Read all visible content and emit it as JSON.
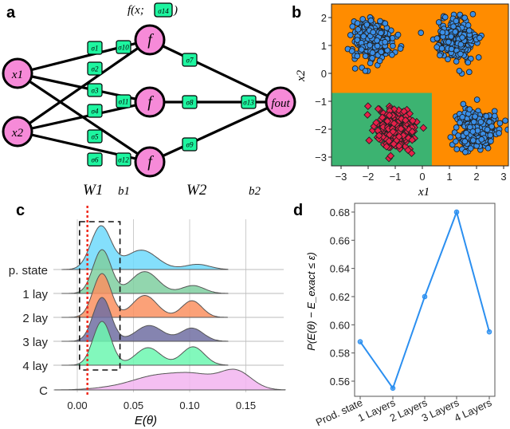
{
  "panel_labels": {
    "a": "a",
    "b": "b",
    "c": "c",
    "d": "d"
  },
  "network": {
    "title_prefix": "f(x;",
    "title_sigma": "σ14",
    "title_suffix": ")",
    "inputs": [
      "x1",
      "x2"
    ],
    "hidden": [
      "f",
      "f",
      "f"
    ],
    "output": "fout",
    "sigmas": [
      "σ1",
      "σ2",
      "σ3",
      "σ4",
      "σ5",
      "σ6",
      "σ7",
      "σ8",
      "σ9",
      "σ10",
      "σ11",
      "σ12",
      "σ13"
    ],
    "bottom_labels": [
      "W1",
      "b1",
      "W2",
      "b2"
    ],
    "node_color": "#f68ad8",
    "param_color": "#1ef5a0"
  },
  "chart_data": [
    {
      "type": "scatter",
      "panel": "b",
      "xlabel": "x1",
      "ylabel": "x2",
      "xlim": [
        -3.25,
        3.25
      ],
      "ylim": [
        -3.3,
        2.5
      ],
      "xticks": [
        "−3",
        "−2",
        "−1",
        "0",
        "1",
        "2",
        "3"
      ],
      "yticks": [
        "2",
        "1",
        "0",
        "−1",
        "−2",
        "−3"
      ],
      "background_colors": {
        "class_0_region": "#ff8c00",
        "class_1_region": "#3cb371"
      },
      "decision_region_class1": {
        "x_max": 0.35,
        "y_max": -0.7
      },
      "clusters": [
        {
          "class": 0,
          "center": [
            -1.8,
            1.2
          ],
          "spread": 0.45,
          "marker": "circle",
          "color": "#3a8fe8"
        },
        {
          "class": 0,
          "center": [
            1.2,
            1.2
          ],
          "spread": 0.45,
          "marker": "circle",
          "color": "#3a8fe8"
        },
        {
          "class": 0,
          "center": [
            2.0,
            -2.0
          ],
          "spread": 0.45,
          "marker": "circle",
          "color": "#3a8fe8"
        },
        {
          "class": 1,
          "center": [
            -1.0,
            -2.0
          ],
          "spread": 0.45,
          "marker": "diamond",
          "color": "#e8204a"
        }
      ]
    },
    {
      "type": "area",
      "subtype": "ridgeline",
      "panel": "c",
      "xlabel": "E(θ)",
      "xlim": [
        -0.02,
        0.185
      ],
      "xticks": [
        "0.00",
        "0.05",
        "0.10",
        "0.15"
      ],
      "xtick_values": [
        0,
        0.05,
        0.1,
        0.15
      ],
      "reference_line": 0.009,
      "highlight_box": [
        0.002,
        0.038
      ],
      "series": [
        {
          "name": "p. state",
          "color": "#6fd9fb",
          "components": [
            [
              0.021,
              0.009,
              1.0
            ],
            [
              0.057,
              0.014,
              0.45
            ],
            [
              0.107,
              0.011,
              0.12
            ]
          ]
        },
        {
          "name": "1 lay",
          "color": "#7fcfa0",
          "components": [
            [
              0.022,
              0.008,
              1.0
            ],
            [
              0.06,
              0.012,
              0.5
            ],
            [
              0.103,
              0.01,
              0.18
            ]
          ]
        },
        {
          "name": "2 lay",
          "color": "#fa9060",
          "components": [
            [
              0.022,
              0.008,
              1.0
            ],
            [
              0.06,
              0.011,
              0.5
            ],
            [
              0.102,
              0.009,
              0.38
            ]
          ]
        },
        {
          "name": "3 lay",
          "color": "#706ea2",
          "components": [
            [
              0.022,
              0.008,
              1.0
            ],
            [
              0.064,
              0.012,
              0.36
            ],
            [
              0.102,
              0.01,
              0.3
            ]
          ]
        },
        {
          "name": "4 lay",
          "color": "#6cf7b0",
          "components": [
            [
              0.022,
              0.008,
              1.0
            ],
            [
              0.063,
              0.011,
              0.4
            ],
            [
              0.103,
              0.01,
              0.42
            ]
          ]
        },
        {
          "name": "C",
          "color": "#f2b4f0",
          "components": [
            [
              0.07,
              0.02,
              0.75
            ],
            [
              0.105,
              0.018,
              0.8
            ],
            [
              0.141,
              0.014,
              1.1
            ],
            [
              0.035,
              0.02,
              0.15
            ]
          ]
        }
      ]
    },
    {
      "type": "line",
      "panel": "d",
      "ylabel": "P(E(θ) − E_exact ≤ ε)",
      "categories": [
        "Prod. state",
        "1 Layers",
        "2 Layers",
        "3 Layers",
        "4 Layers"
      ],
      "values": [
        0.588,
        0.555,
        0.62,
        0.68,
        0.595
      ],
      "ylim": [
        0.55,
        0.686
      ],
      "yticks": [
        "0.56",
        "0.58",
        "0.60",
        "0.62",
        "0.64",
        "0.66",
        "0.68"
      ],
      "ytick_values": [
        0.56,
        0.58,
        0.6,
        0.62,
        0.64,
        0.66,
        0.68
      ],
      "color": "#2b8ff0"
    }
  ]
}
